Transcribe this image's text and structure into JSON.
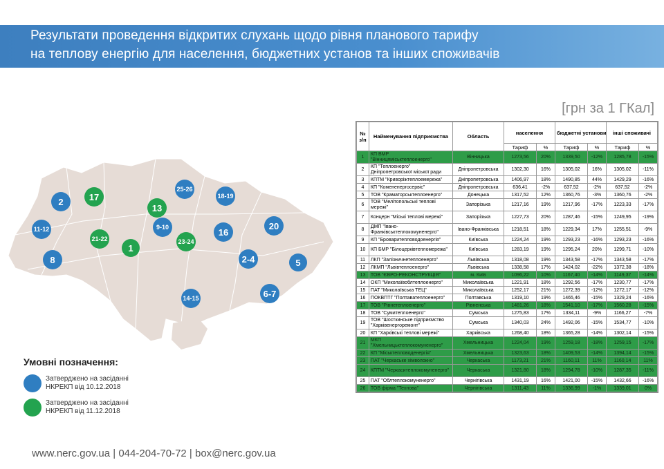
{
  "title_line1": "Результати проведення відкритих слухань щодо рівня планового тарифу",
  "title_line2": "на теплову енергію для населення, бюджетних установ та інших споживачів",
  "unit": "[грн за 1 ГКал]",
  "colors": {
    "banner": "#3d7fbf",
    "blue": "#2f7ec1",
    "green": "#23a34f",
    "map": "#e6dcd6"
  },
  "map_badges": [
    {
      "label": "2",
      "color": "blue"
    },
    {
      "label": "17",
      "color": "green"
    },
    {
      "label": "25-26",
      "color": "blue"
    },
    {
      "label": "18-19",
      "color": "blue"
    },
    {
      "label": "13",
      "color": "green"
    },
    {
      "label": "11-12",
      "color": "blue"
    },
    {
      "label": "21-22",
      "color": "green"
    },
    {
      "label": "9-10",
      "color": "blue"
    },
    {
      "label": "16",
      "color": "blue"
    },
    {
      "label": "20",
      "color": "blue"
    },
    {
      "label": "1",
      "color": "green"
    },
    {
      "label": "23-24",
      "color": "green"
    },
    {
      "label": "8",
      "color": "blue"
    },
    {
      "label": "2-4",
      "color": "blue"
    },
    {
      "label": "5",
      "color": "blue"
    },
    {
      "label": "6-7",
      "color": "blue"
    },
    {
      "label": "14-15",
      "color": "blue"
    }
  ],
  "legend": {
    "title": "Умовні позначення:",
    "blue_line1": "Затверджено на засіданні",
    "blue_line2": "НКРЕКП від 10.12.2018",
    "green_line1": "Затверджено на засіданні",
    "green_line2": "НКРЕКП від 11.12.2018"
  },
  "footer": "www.nerc.gov.ua | 044-204-70-72 | box@nerc.gov.ua",
  "table": {
    "h_num": "№ з/п",
    "h_name": "Найменування підприємства",
    "h_region": "Область",
    "h_pop": "населення",
    "h_budget": "бюджетні установи",
    "h_other": "інші споживачі",
    "h_tariff": "Тариф",
    "h_pct": "%",
    "rows": [
      {
        "n": "1",
        "name": "КП ВМР \"Вінницяміськтеплоенерго\"",
        "region": "Вінницька",
        "t1": "1273,56",
        "p1": "20%",
        "t2": "1339,50",
        "p2": "-12%",
        "t3": "1285,78",
        "p3": "-15%",
        "hl": true,
        "tall": true
      },
      {
        "n": "2",
        "name": "КП \"Теплоенерго\" Дніпропетровської міської ради",
        "region": "Дніпропетровська",
        "t1": "1302,30",
        "p1": "16%",
        "t2": "1305,02",
        "p2": "16%",
        "t3": "1305,02",
        "p3": "-11%",
        "hl": false,
        "tall": true
      },
      {
        "n": "3",
        "name": "КПТМ \"Криворіжтеплоемережа\"",
        "region": "Дніпропетровська",
        "t1": "1406,97",
        "p1": "18%",
        "t2": "1490,85",
        "p2": "44%",
        "t3": "1429,29",
        "p3": "-16%",
        "hl": false,
        "tall": false
      },
      {
        "n": "4",
        "name": "КП \"Комененергосервіс\"",
        "region": "Дніпропетровська",
        "t1": "636,41",
        "p1": "-2%",
        "t2": "637,52",
        "p2": "-2%",
        "t3": "637,52",
        "p3": "-2%",
        "hl": false,
        "tall": false
      },
      {
        "n": "5",
        "name": "ТОВ \"Краматорськтеплоенерго\"",
        "region": "Донецька",
        "t1": "1317,52",
        "p1": "12%",
        "t2": "1360,76",
        "p2": "-3%",
        "t3": "1360,76",
        "p3": "-2%",
        "hl": false,
        "tall": false
      },
      {
        "n": "6",
        "name": "ТОВ \"Мелітопольські теплові мережі\"",
        "region": "Запорізька",
        "t1": "1217,16",
        "p1": "19%",
        "t2": "1217,96",
        "p2": "-17%",
        "t3": "1223,33",
        "p3": "-17%",
        "hl": false,
        "tall": true
      },
      {
        "n": "7",
        "name": "Концерн \"Міські теплові мережі\"",
        "region": "Запорізька",
        "t1": "1227,73",
        "p1": "20%",
        "t2": "1287,46",
        "p2": "-15%",
        "t3": "1249,95",
        "p3": "-19%",
        "hl": false,
        "tall": true
      },
      {
        "n": "8",
        "name": "ДМП \"Івано-Франківськтеплокомуненерго\"",
        "region": "Івано-Франківська",
        "t1": "1218,51",
        "p1": "18%",
        "t2": "1229,34",
        "p2": "17%",
        "t3": "1255,51",
        "p3": "-9%",
        "hl": false,
        "tall": true
      },
      {
        "n": "9",
        "name": "КП \"Броваритепловодоенергія\"",
        "region": "Київська",
        "t1": "1224,24",
        "p1": "19%",
        "t2": "1293,23",
        "p2": "-16%",
        "t3": "1293,23",
        "p3": "-16%",
        "hl": false,
        "tall": false
      },
      {
        "n": "10",
        "name": "КП БМР \"Білоцерківтепломережа\"",
        "region": "Київська",
        "t1": "1283,19",
        "p1": "19%",
        "t2": "1295,24",
        "p2": "20%",
        "t3": "1299,71",
        "p3": "-10%",
        "hl": false,
        "tall": true
      },
      {
        "n": "11",
        "name": "ЛКП \"Залізничнетеплоенерго\"",
        "region": "Львівська",
        "t1": "1318,08",
        "p1": "19%",
        "t2": "1343,58",
        "p2": "-17%",
        "t3": "1343,58",
        "p3": "-17%",
        "hl": false,
        "tall": false
      },
      {
        "n": "12",
        "name": "ЛКМП \"Львівтеплоенерго\"",
        "region": "Львівська",
        "t1": "1338,58",
        "p1": "17%",
        "t2": "1424,02",
        "p2": "-22%",
        "t3": "1372,38",
        "p3": "-18%",
        "hl": false,
        "tall": false
      },
      {
        "n": "13",
        "name": "ТОВ \"ЄВРО-РЕКОНСТРУКЦІЯ\"",
        "region": "м. Київ",
        "t1": "1096,22",
        "p1": "10%",
        "t2": "1167,40",
        "p2": "-14%",
        "t3": "1149,37",
        "p3": "-14%",
        "hl": true,
        "tall": false
      },
      {
        "n": "14",
        "name": "ОКП \"Миколаївоблтеплоенерго\"",
        "region": "Миколаївська",
        "t1": "1221,91",
        "p1": "18%",
        "t2": "1292,56",
        "p2": "-17%",
        "t3": "1230,77",
        "p3": "-17%",
        "hl": false,
        "tall": false
      },
      {
        "n": "15",
        "name": "ПАТ \"Миколаївська ТЕЦ\"",
        "region": "Миколаївська",
        "t1": "1252,17",
        "p1": "21%",
        "t2": "1272,39",
        "p2": "-12%",
        "t3": "1272,17",
        "p3": "-12%",
        "hl": false,
        "tall": false
      },
      {
        "n": "16",
        "name": "ПОКВПТГ \"Полтаватеплоенерго\"",
        "region": "Полтавська",
        "t1": "1319,10",
        "p1": "19%",
        "t2": "1465,46",
        "p2": "-15%",
        "t3": "1329,24",
        "p3": "-16%",
        "hl": false,
        "tall": false
      },
      {
        "n": "17",
        "name": "ТОВ \"Рівнетеплоенерго\"",
        "region": "Рівненська",
        "t1": "1481,26",
        "p1": "18%",
        "t2": "1541,10",
        "p2": "-17%",
        "t3": "1560,28",
        "p3": "-15%",
        "hl": true,
        "tall": false
      },
      {
        "n": "18",
        "name": "ТОВ \"Сумитеплоенерго\"",
        "region": "Сумська",
        "t1": "1275,83",
        "p1": "17%",
        "t2": "1334,11",
        "p2": "-9%",
        "t3": "1166,27",
        "p3": "-7%",
        "hl": false,
        "tall": false
      },
      {
        "n": "19",
        "name": "ТОВ \"Шосткинське підприємство \"Харківенергоремонт\"",
        "region": "Сумська",
        "t1": "1340,03",
        "p1": "24%",
        "t2": "1492,06",
        "p2": "-15%",
        "t3": "1534,77",
        "p3": "-10%",
        "hl": false,
        "tall": true
      },
      {
        "n": "20",
        "name": "КП \"Харківські теплові мережі\"",
        "region": "Харківська",
        "t1": "1268,40",
        "p1": "18%",
        "t2": "1365,28",
        "p2": "-14%",
        "t3": "1302,14",
        "p3": "-15%",
        "hl": false,
        "tall": false
      },
      {
        "n": "21",
        "name": "МКП \"Хмельницьктеплокомуненерго\"",
        "region": "Хмельницька",
        "t1": "1224,04",
        "p1": "19%",
        "t2": "1259,18",
        "p2": "-18%",
        "t3": "1259,15",
        "p3": "-17%",
        "hl": true,
        "tall": true
      },
      {
        "n": "22",
        "name": "КП \"Міськтепловоденергія\"",
        "region": "Хмельницька",
        "t1": "1323,63",
        "p1": "18%",
        "t2": "1409,53",
        "p2": "-14%",
        "t3": "1394,14",
        "p3": "-15%",
        "hl": true,
        "tall": false
      },
      {
        "n": "23",
        "name": "ПАТ \"Черкаське хімволокно\"",
        "region": "Черкаська",
        "t1": "1173,21",
        "p1": "21%",
        "t2": "1160,11",
        "p2": "11%",
        "t3": "1160,14",
        "p3": "11%",
        "hl": true,
        "tall": false
      },
      {
        "n": "24",
        "name": "КПТМ \"Черкаситеплокомуненерго\"",
        "region": "Черкаська",
        "t1": "1321,80",
        "p1": "18%",
        "t2": "1294,78",
        "p2": "-10%",
        "t3": "1287,35",
        "p3": "-11%",
        "hl": true,
        "tall": true
      },
      {
        "n": "25",
        "name": "ПАТ \"Облтеплокомуненерго\"",
        "region": "Чернігівська",
        "t1": "1431,19",
        "p1": "16%",
        "t2": "1421,00",
        "p2": "-15%",
        "t3": "1432,66",
        "p3": "-16%",
        "hl": false,
        "tall": false
      },
      {
        "n": "26",
        "name": "ТОВ фірма \"Технова\"",
        "region": "Чернігівська",
        "t1": "1311,43",
        "p1": "11%",
        "t2": "1336,99",
        "p2": "-1%",
        "t3": "1339,01",
        "p3": "0%",
        "hl": true,
        "tall": false
      }
    ]
  }
}
